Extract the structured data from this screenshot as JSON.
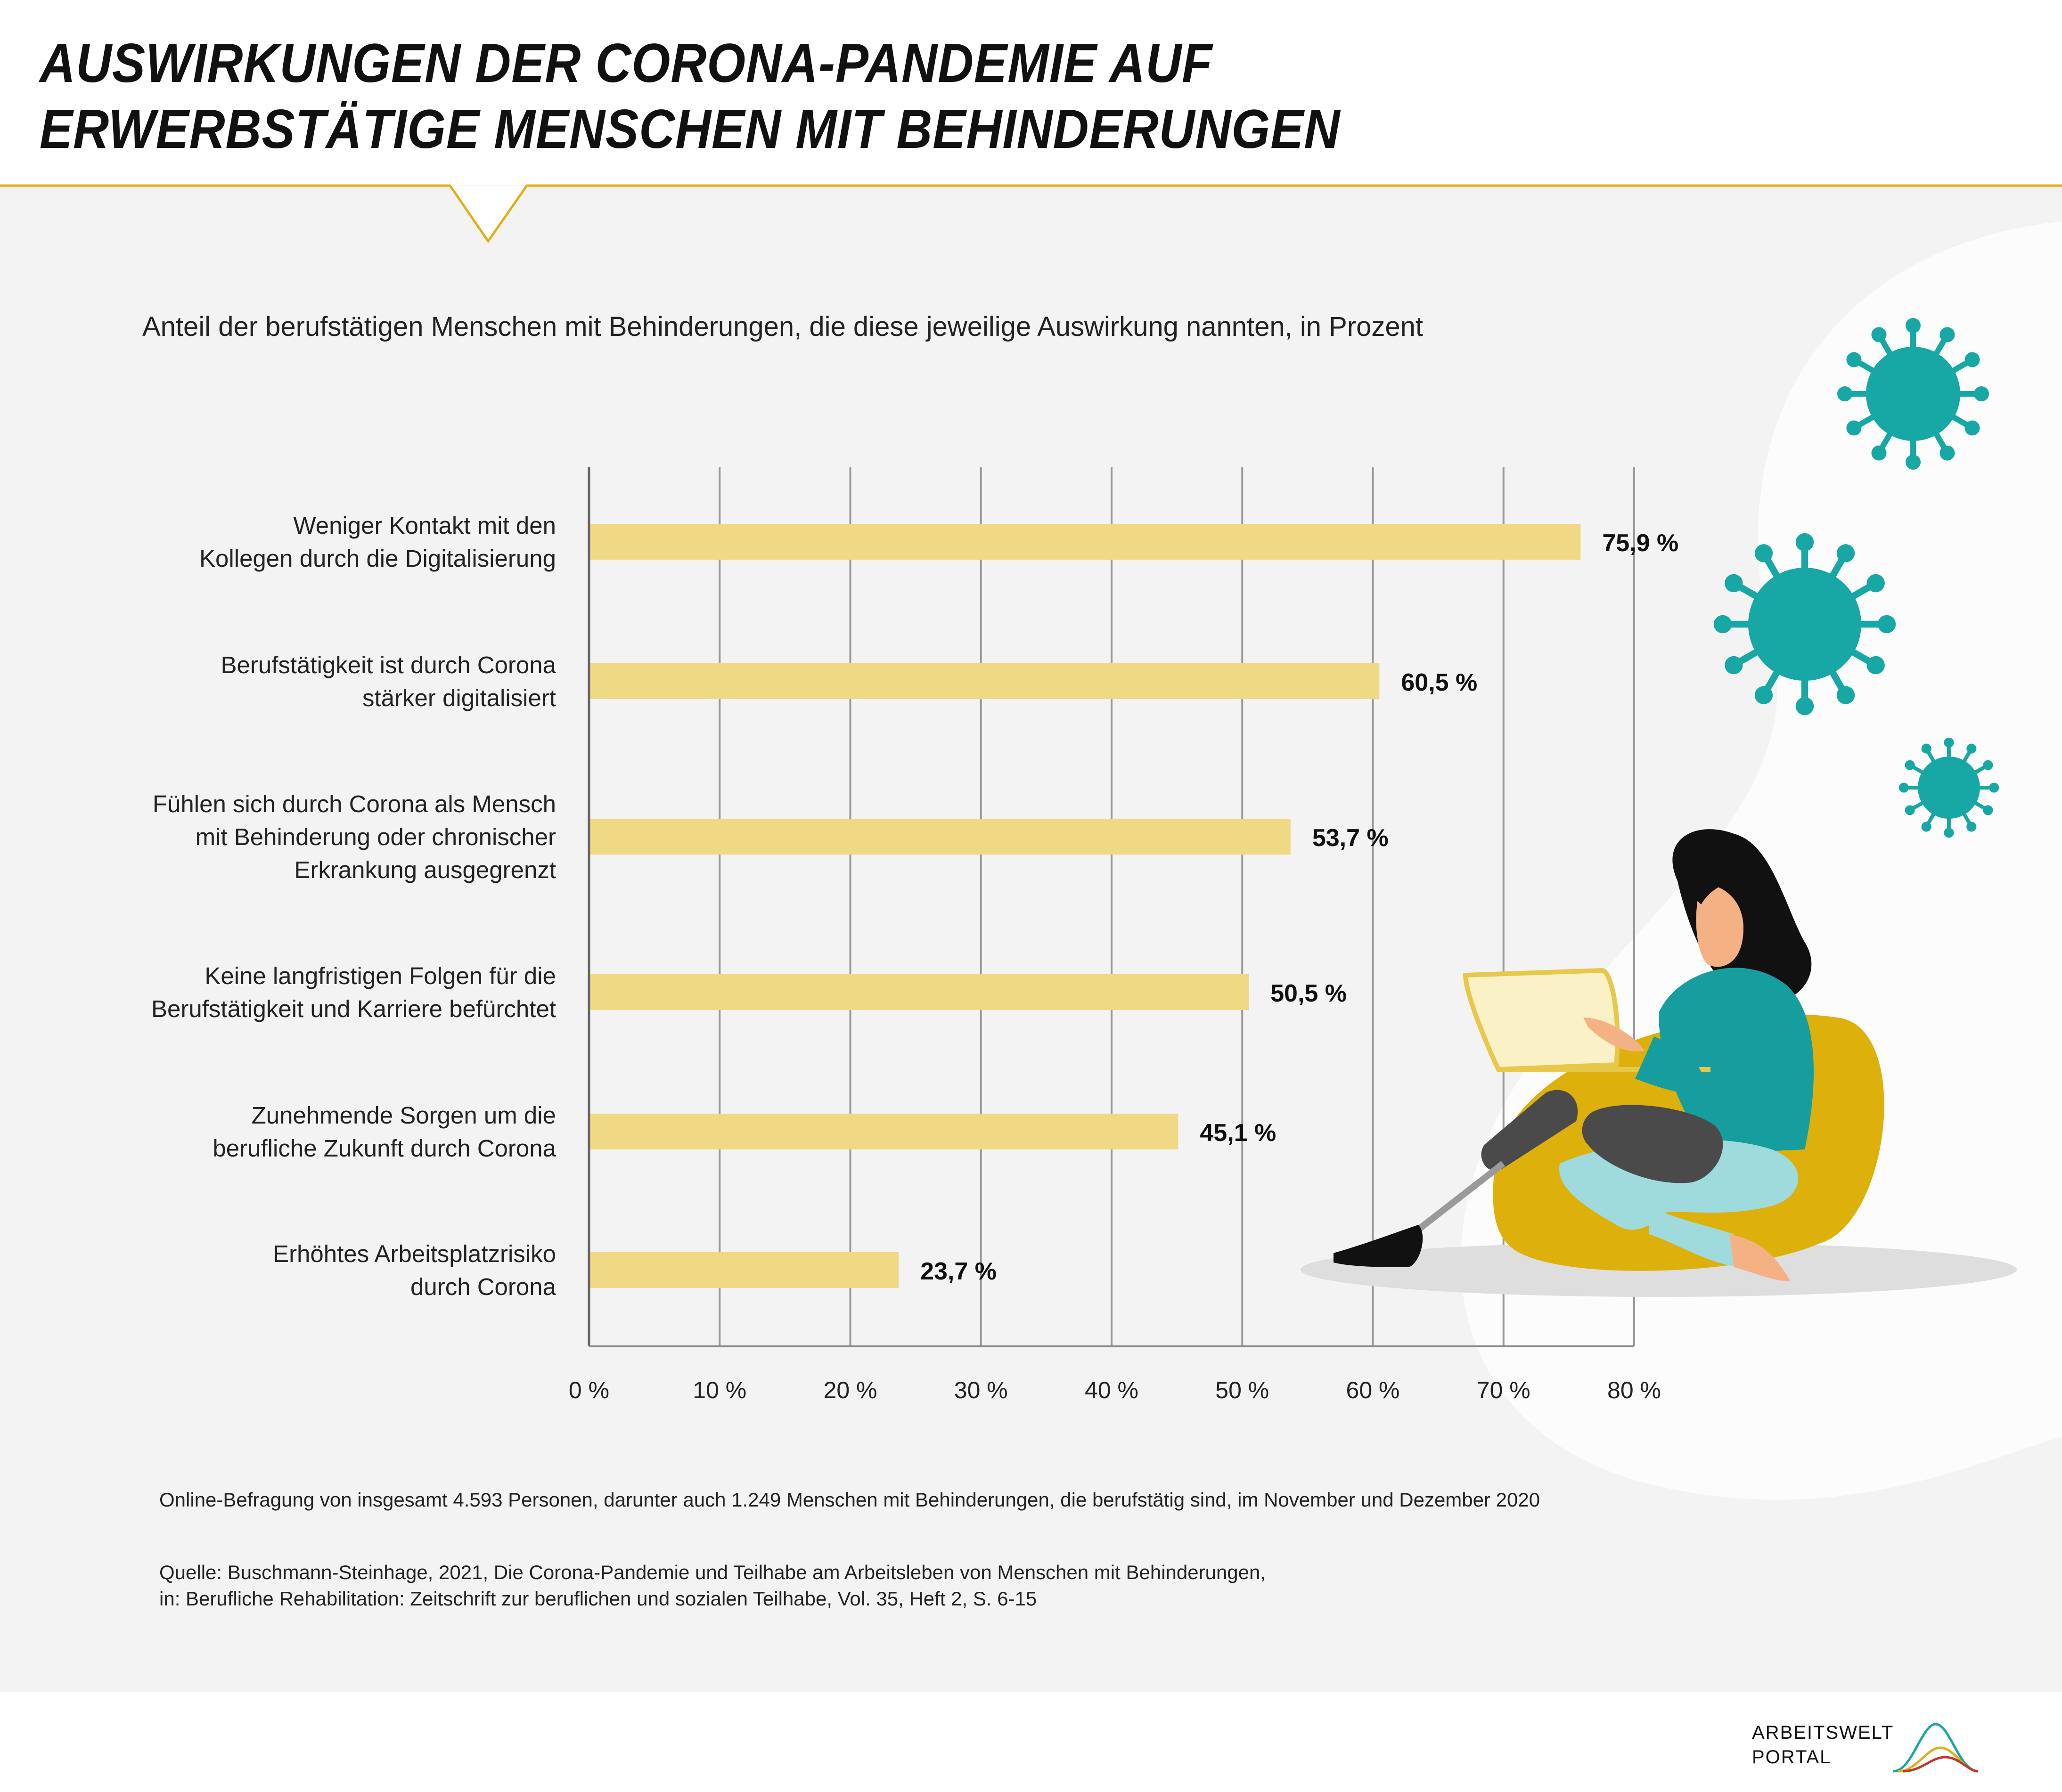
{
  "title": {
    "line1": "AUSWIRKUNGEN DER CORONA-PANDEMIE AUF",
    "line2": "ERWERBSTÄTIGE MENSCHEN MIT BEHINDERUNGEN"
  },
  "subtitle": "Anteil der berufstätigen Menschen mit Behinderungen, die diese jeweilige Auswirkung nannten, in Prozent",
  "colors": {
    "accent": "#e3ae16",
    "bar": "#efd985",
    "panel": "#f3f3f3",
    "virus": "#17a7a4",
    "grid": "#9a9a9a"
  },
  "chart_data": {
    "type": "bar",
    "orientation": "horizontal",
    "categories": [
      [
        "Weniger Kontakt mit den",
        "Kollegen durch die Digitalisierung"
      ],
      [
        "Berufstätigkeit ist durch Corona",
        "stärker digitalisiert"
      ],
      [
        "Fühlen sich durch Corona als Mensch",
        "mit Behinderung oder chronischer",
        "Erkrankung ausgegrenzt"
      ],
      [
        "Keine langfristigen Folgen für die",
        "Berufstätigkeit und Karriere befürchtet"
      ],
      [
        "Zunehmende Sorgen um die",
        "berufliche Zukunft durch Corona"
      ],
      [
        "Erhöhtes Arbeitsplatzrisiko",
        "durch Corona"
      ]
    ],
    "values": [
      75.9,
      60.5,
      53.7,
      50.5,
      45.1,
      23.7
    ],
    "value_labels": [
      "75,9 %",
      "60,5 %",
      "53,7 %",
      "50,5 %",
      "45,1 %",
      "23,7 %"
    ],
    "xlim": [
      0,
      80
    ],
    "ticks": [
      0,
      10,
      20,
      30,
      40,
      50,
      60,
      70,
      80
    ],
    "tick_labels": [
      "0 %",
      "10 %",
      "20 %",
      "30 %",
      "40 %",
      "50 %",
      "60 %",
      "70 %",
      "80 %"
    ],
    "grid": true
  },
  "notes": {
    "survey": "Online-Befragung von insgesamt 4.593 Personen, darunter auch 1.249 Menschen mit Behinderungen, die berufstätig sind, im November und Dezember 2020",
    "source_line1": "Quelle: Buschmann-Steinhage, 2021, Die Corona-Pandemie und Teilhabe am Arbeitsleben von Menschen mit Behinderungen,",
    "source_line2": "in: Berufliche Rehabilitation: Zeitschrift zur beruflichen und sozialen Teilhabe, Vol. 35, Heft 2, S. 6-15"
  },
  "logo": {
    "line1": "ARBEITSWELT",
    "line2": "PORTAL"
  },
  "illustration": {
    "icons": [
      "virus-icon",
      "virus-icon",
      "virus-icon",
      "woman-with-laptop-illustration"
    ]
  }
}
